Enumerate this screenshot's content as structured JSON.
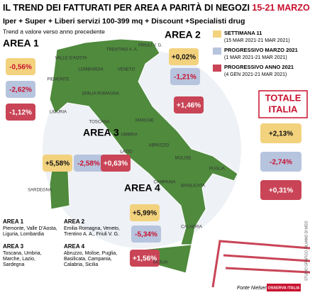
{
  "header": {
    "title": "IL TREND DEI FATTURATI PER AREA A PARITÀ DI NEGOZI",
    "title_date": "15-21 MARZO 2021",
    "subtitle": "Iper + Super + Liberi servizi 100-399 mq + Discount +Specialisti drug",
    "note": "Trend a valore verso anno precedente"
  },
  "legend": [
    {
      "label": "SETTIMANA 11",
      "period": "(15 MAR 2021-21 MAR 2021)",
      "color": "#f3d27e"
    },
    {
      "label": "PROGRESSIVO MARZO 2021",
      "period": "(1 MAR 2021-21 MAR 2021)",
      "color": "#b7c4de"
    },
    {
      "label": "PROGRESSIVO ANNO 2021",
      "period": "(4 GEN 2021-21 MAR 2021)",
      "color": "#c94456"
    }
  ],
  "areas": [
    {
      "name": "AREA 1",
      "values": [
        "-0,56%",
        "-2,62%",
        "-1,12%"
      ]
    },
    {
      "name": "AREA 2",
      "values": [
        "+0,02%",
        "-1,21%",
        "+1,46%"
      ]
    },
    {
      "name": "AREA 3",
      "values": [
        "+5,58%",
        "-2,58%",
        "+0,63%"
      ]
    },
    {
      "name": "AREA 4",
      "values": [
        "+5,99%",
        "-5,34%",
        "+1,56%"
      ]
    }
  ],
  "total": {
    "name": [
      "TOTALE",
      "ITALIA"
    ],
    "values": [
      "+2,13%",
      "-2,74%",
      "+0,31%"
    ]
  },
  "regions": [
    "VALLE D'AOSTA",
    "TRENTINO A. A.",
    "FRIULI V. G.",
    "LOMBARDIA",
    "VENETO",
    "PIEMONTE",
    "EMILIA ROMAGNA",
    "LIGURIA",
    "TOSCANA",
    "MARCHE",
    "UMBRIA",
    "LAZIO",
    "ABRUZZO",
    "MOLISE",
    "PUGLIA",
    "CAMPANIA",
    "BASILICATA",
    "SARDEGNA",
    "CALABRIA",
    "SICILIA"
  ],
  "footnotes": [
    {
      "name": "AREA 1",
      "lines": [
        "Piemonte, Valle D'Aosta,",
        "Liguria, Lombardia"
      ]
    },
    {
      "name": "AREA 2",
      "lines": [
        "Emilia Romagna, Veneto,",
        "Trentino A. A., Friuli V. G."
      ]
    },
    {
      "name": "AREA 3",
      "lines": [
        "Toscana, Umbria,",
        "Marche, Lazio,",
        "Sardegna"
      ]
    },
    {
      "name": "AREA 4",
      "lines": [
        "Abruzzo, Molise, Puglia,",
        "Basilicata, Campania,",
        "Calabria, Sicilia"
      ]
    }
  ],
  "source": "Fonte Nielsen",
  "credit": "STUDIO GRAFICO SILVANO DI MEO",
  "brand": "OSSERVA ITALIA"
}
